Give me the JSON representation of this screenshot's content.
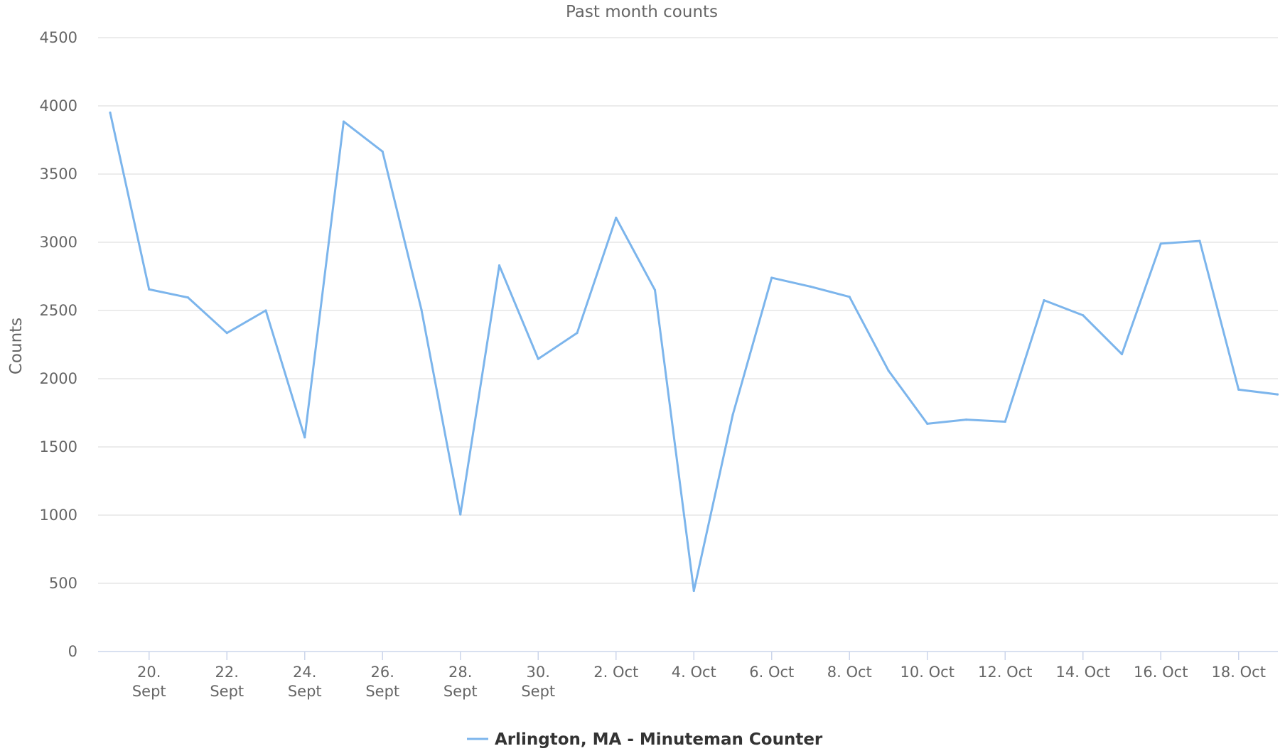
{
  "chart_data": {
    "type": "line",
    "title": "Past month counts",
    "xlabel": "",
    "ylabel": "Counts",
    "ylim": [
      0,
      4500
    ],
    "y_ticks": [
      0,
      500,
      1000,
      1500,
      2000,
      2500,
      3000,
      3500,
      4000,
      4500
    ],
    "x_ticks": [
      {
        "day": 20,
        "label": [
          "20.",
          "Sept"
        ]
      },
      {
        "day": 22,
        "label": [
          "22.",
          "Sept"
        ]
      },
      {
        "day": 24,
        "label": [
          "24.",
          "Sept"
        ]
      },
      {
        "day": 26,
        "label": [
          "26.",
          "Sept"
        ]
      },
      {
        "day": 28,
        "label": [
          "28.",
          "Sept"
        ]
      },
      {
        "day": 30,
        "label": [
          "30.",
          "Sept"
        ]
      },
      {
        "day": 32,
        "label": [
          "2. Oct"
        ]
      },
      {
        "day": 34,
        "label": [
          "4. Oct"
        ]
      },
      {
        "day": 36,
        "label": [
          "6. Oct"
        ]
      },
      {
        "day": 38,
        "label": [
          "8. Oct"
        ]
      },
      {
        "day": 40,
        "label": [
          "10. Oct"
        ]
      },
      {
        "day": 42,
        "label": [
          "12. Oct"
        ]
      },
      {
        "day": 44,
        "label": [
          "14. Oct"
        ]
      },
      {
        "day": 46,
        "label": [
          "16. Oct"
        ]
      },
      {
        "day": 48,
        "label": [
          "18. Oct"
        ]
      }
    ],
    "grid": true,
    "legend_position": "bottom-center",
    "colors": {
      "series": "#7cb5ec",
      "grid": "#e6e6e6",
      "axis": "#ccd6eb",
      "text": "#666666",
      "legend_text": "#333333"
    },
    "series": [
      {
        "name": "Arlington, MA - Minuteman Counter",
        "points": [
          {
            "date": "19 Sept",
            "value": 3950
          },
          {
            "date": "20 Sept",
            "value": 2655
          },
          {
            "date": "21 Sept",
            "value": 2595
          },
          {
            "date": "22 Sept",
            "value": 2335
          },
          {
            "date": "23 Sept",
            "value": 2500
          },
          {
            "date": "24 Sept",
            "value": 1570
          },
          {
            "date": "25 Sept",
            "value": 3885
          },
          {
            "date": "26 Sept",
            "value": 3665
          },
          {
            "date": "27 Sept",
            "value": 2505
          },
          {
            "date": "28 Sept",
            "value": 1005
          },
          {
            "date": "29 Sept",
            "value": 2830
          },
          {
            "date": "30 Sept",
            "value": 2145
          },
          {
            "date": "1 Oct",
            "value": 2335
          },
          {
            "date": "2 Oct",
            "value": 3180
          },
          {
            "date": "3 Oct",
            "value": 2650
          },
          {
            "date": "4 Oct",
            "value": 445
          },
          {
            "date": "5 Oct",
            "value": 1735
          },
          {
            "date": "6 Oct",
            "value": 2740
          },
          {
            "date": "7 Oct",
            "value": 2675
          },
          {
            "date": "8 Oct",
            "value": 2600
          },
          {
            "date": "9 Oct",
            "value": 2060
          },
          {
            "date": "10 Oct",
            "value": 1670
          },
          {
            "date": "11 Oct",
            "value": 1700
          },
          {
            "date": "12 Oct",
            "value": 1685
          },
          {
            "date": "13 Oct",
            "value": 2575
          },
          {
            "date": "14 Oct",
            "value": 2465
          },
          {
            "date": "15 Oct",
            "value": 2180
          },
          {
            "date": "16 Oct",
            "value": 2990
          },
          {
            "date": "17 Oct",
            "value": 3010
          },
          {
            "date": "18 Oct",
            "value": 1920
          },
          {
            "date": "19 Oct",
            "value": 1885
          }
        ]
      }
    ]
  }
}
